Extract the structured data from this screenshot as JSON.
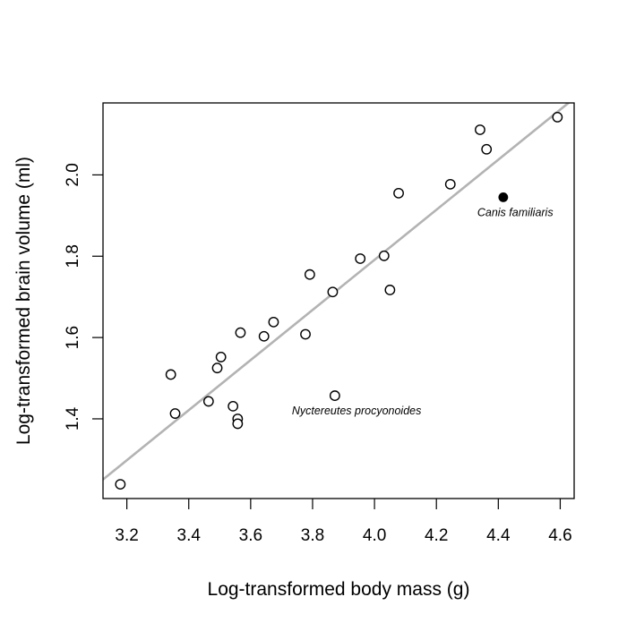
{
  "chart_data": {
    "type": "scatter",
    "title": "",
    "xlabel": "Log-transformed body mass (g)",
    "ylabel": "Log-transformed brain volume (ml)",
    "xlim": [
      3.123,
      4.645
    ],
    "ylim": [
      1.204,
      2.177
    ],
    "xticks": [
      "3.2",
      "3.4",
      "3.6",
      "3.8",
      "4.0",
      "4.2",
      "4.4",
      "4.6"
    ],
    "yticks": [
      "1.4",
      "1.6",
      "1.8",
      "2.0"
    ],
    "grid": false,
    "points": [
      {
        "x": 3.179,
        "y": 1.239
      },
      {
        "x": 3.342,
        "y": 1.509
      },
      {
        "x": 3.356,
        "y": 1.413
      },
      {
        "x": 3.464,
        "y": 1.443
      },
      {
        "x": 3.492,
        "y": 1.525
      },
      {
        "x": 3.504,
        "y": 1.552
      },
      {
        "x": 3.543,
        "y": 1.431
      },
      {
        "x": 3.558,
        "y": 1.4
      },
      {
        "x": 3.558,
        "y": 1.388
      },
      {
        "x": 3.567,
        "y": 1.612
      },
      {
        "x": 3.643,
        "y": 1.603
      },
      {
        "x": 3.674,
        "y": 1.638
      },
      {
        "x": 3.777,
        "y": 1.608
      },
      {
        "x": 3.791,
        "y": 1.755
      },
      {
        "x": 3.865,
        "y": 1.712
      },
      {
        "x": 3.872,
        "y": 1.457,
        "label": "Nyctereutes procyonoides"
      },
      {
        "x": 3.954,
        "y": 1.794
      },
      {
        "x": 4.031,
        "y": 1.801
      },
      {
        "x": 4.05,
        "y": 1.717
      },
      {
        "x": 4.078,
        "y": 1.955
      },
      {
        "x": 4.245,
        "y": 1.977
      },
      {
        "x": 4.341,
        "y": 2.111
      },
      {
        "x": 4.362,
        "y": 2.063
      },
      {
        "x": 4.591,
        "y": 2.142
      }
    ],
    "highlight": {
      "x": 4.416,
      "y": 1.945,
      "label": "Canis familiaris"
    },
    "regression_line": {
      "slope": 0.616,
      "intercept": -0.673,
      "color": "#b3b3b3"
    },
    "point_color": "#000000"
  }
}
